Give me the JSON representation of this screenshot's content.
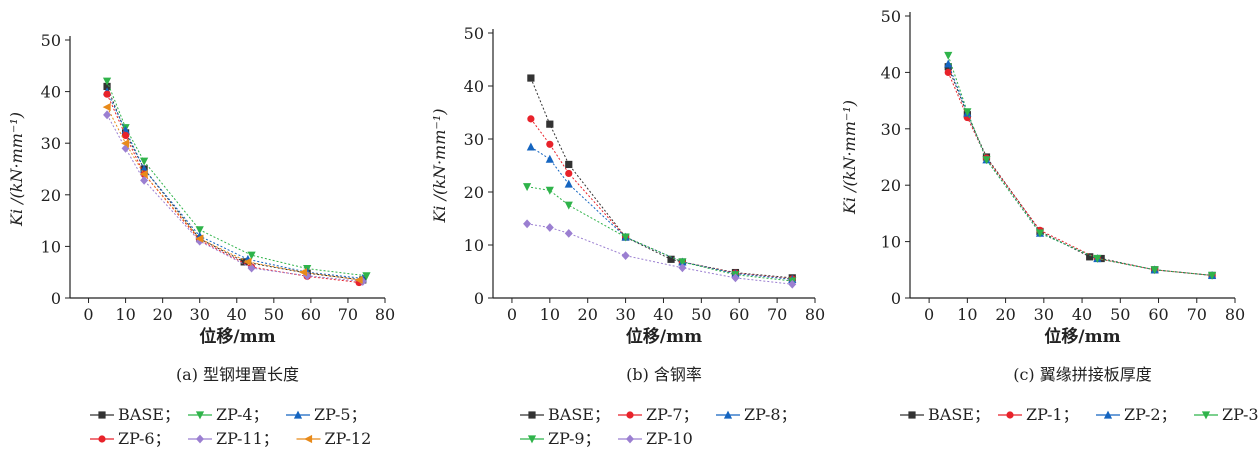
{
  "colors": {
    "BASE": "#333333",
    "ZP-1": "#e8222a",
    "ZP-2": "#1565c0",
    "ZP-3": "#2fb34a",
    "ZP-4": "#2fb34a",
    "ZP-5": "#1565c0",
    "ZP-6": "#e8222a",
    "ZP-7": "#e8222a",
    "ZP-8": "#1565c0",
    "ZP-9": "#2fb34a",
    "ZP-10": "#9b7fd1",
    "ZP-11": "#9b7fd1",
    "ZP-12": "#e88a1a"
  },
  "chart_data": [
    {
      "type": "line",
      "panel_label": "(a) 型钢埋置长度",
      "xlabel": "位移/mm",
      "ylabel": "Ki /(kN·mm⁻¹)",
      "xlim": [
        -5,
        80
      ],
      "ylim": [
        0,
        50
      ],
      "x_ticks": [
        0,
        10,
        20,
        30,
        40,
        50,
        60,
        70,
        80
      ],
      "y_ticks": [
        0,
        10,
        20,
        30,
        40,
        50
      ],
      "legend_rows": [
        [
          "BASE",
          "ZP-4",
          "ZP-5"
        ],
        [
          "ZP-6",
          "ZP-11",
          "ZP-12"
        ]
      ],
      "series": [
        {
          "name": "BASE",
          "marker": "square",
          "x": [
            5,
            10,
            15,
            30,
            42,
            59,
            74
          ],
          "y": [
            41,
            32,
            25,
            11.5,
            7,
            4.8,
            3.5
          ]
        },
        {
          "name": "ZP-4",
          "marker": "tri-down",
          "x": [
            5,
            10,
            15,
            30,
            44,
            59,
            75
          ],
          "y": [
            42,
            33,
            26.5,
            13.2,
            8.3,
            5.7,
            4.3
          ]
        },
        {
          "name": "ZP-5",
          "marker": "tri-up",
          "x": [
            5,
            10,
            15,
            30,
            43,
            59,
            74
          ],
          "y": [
            40,
            32.5,
            25,
            12,
            7.5,
            5,
            3.8
          ]
        },
        {
          "name": "ZP-6",
          "marker": "circle",
          "x": [
            5,
            10,
            15,
            30,
            44,
            59,
            73
          ],
          "y": [
            39.5,
            31.5,
            24,
            11.2,
            6,
            4.2,
            3
          ]
        },
        {
          "name": "ZP-11",
          "marker": "diamond",
          "x": [
            5,
            10,
            15,
            30,
            44,
            59,
            74
          ],
          "y": [
            35.5,
            29,
            22.8,
            11,
            5.8,
            4.3,
            3.2
          ]
        },
        {
          "name": "ZP-12",
          "marker": "tri-left",
          "x": [
            5,
            10,
            15,
            30,
            43,
            58,
            73
          ],
          "y": [
            37,
            30,
            24,
            11.5,
            7,
            5,
            3.5
          ]
        }
      ]
    },
    {
      "type": "line",
      "panel_label": "(b) 含钢率",
      "xlabel": "位移/mm",
      "ylabel": "Ki /(kN·mm⁻¹)",
      "xlim": [
        -5,
        80
      ],
      "ylim": [
        0,
        50
      ],
      "x_ticks": [
        0,
        10,
        20,
        30,
        40,
        50,
        60,
        70,
        80
      ],
      "y_ticks": [
        0,
        10,
        20,
        30,
        40,
        50
      ],
      "legend_rows": [
        [
          "BASE",
          "ZP-7",
          "ZP-8"
        ],
        [
          "ZP-9",
          "ZP-10"
        ]
      ],
      "series": [
        {
          "name": "BASE",
          "marker": "square",
          "x": [
            5,
            10,
            15,
            30,
            42,
            45,
            59,
            74
          ],
          "y": [
            41.5,
            32.8,
            25.2,
            11.5,
            7.3,
            6.8,
            4.8,
            3.8
          ]
        },
        {
          "name": "ZP-7",
          "marker": "circle",
          "x": [
            5,
            10,
            15,
            30,
            45,
            59,
            74
          ],
          "y": [
            33.8,
            29,
            23.5,
            11.5,
            6.8,
            4.7,
            3.6
          ]
        },
        {
          "name": "ZP-8",
          "marker": "tri-up",
          "x": [
            5,
            10,
            15,
            30,
            45,
            59,
            74
          ],
          "y": [
            28.5,
            26.2,
            21.5,
            11.5,
            6.8,
            4.6,
            3.5
          ]
        },
        {
          "name": "ZP-9",
          "marker": "tri-down",
          "x": [
            4,
            10,
            15,
            30,
            45,
            59,
            74
          ],
          "y": [
            21,
            20.3,
            17.5,
            11.5,
            6.8,
            4.4,
            3.2
          ]
        },
        {
          "name": "ZP-10",
          "marker": "diamond",
          "x": [
            4,
            10,
            15,
            30,
            45,
            59,
            74
          ],
          "y": [
            14,
            13.3,
            12.2,
            8,
            5.7,
            3.8,
            2.6
          ]
        }
      ]
    },
    {
      "type": "line",
      "panel_label": "(c) 翼缘拼接板厚度",
      "xlabel": "位移/mm",
      "ylabel": "Ki /(kN·mm⁻¹)",
      "xlim": [
        -5,
        80
      ],
      "ylim": [
        0,
        50
      ],
      "x_ticks": [
        0,
        10,
        20,
        30,
        40,
        50,
        60,
        70,
        80
      ],
      "y_ticks": [
        0,
        10,
        20,
        30,
        40,
        50
      ],
      "legend_rows": [
        [
          "BASE",
          "ZP-1",
          "ZP-2",
          "ZP-3"
        ]
      ],
      "series": [
        {
          "name": "BASE",
          "marker": "square",
          "x": [
            5,
            10,
            15,
            29,
            42,
            45,
            59,
            74
          ],
          "y": [
            41,
            32.5,
            25,
            11.8,
            7.3,
            7,
            5,
            4
          ]
        },
        {
          "name": "ZP-1",
          "marker": "circle",
          "x": [
            5,
            10,
            15,
            29,
            44,
            59,
            74
          ],
          "y": [
            40,
            32,
            24.8,
            12,
            7,
            5,
            4
          ]
        },
        {
          "name": "ZP-2",
          "marker": "tri-up",
          "x": [
            5,
            10,
            15,
            29,
            44,
            59,
            74
          ],
          "y": [
            41.5,
            32.8,
            24.5,
            11.5,
            7,
            5,
            4
          ]
        },
        {
          "name": "ZP-3",
          "marker": "tri-down",
          "x": [
            5,
            10,
            15,
            29,
            44,
            59,
            74
          ],
          "y": [
            43,
            33,
            24.5,
            11.5,
            7,
            5,
            4
          ]
        }
      ]
    }
  ]
}
